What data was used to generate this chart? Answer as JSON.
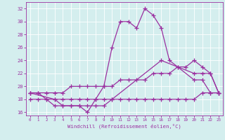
{
  "xlabel": "Windchill (Refroidissement éolien,°C)",
  "line1_x": [
    0,
    1,
    2,
    3,
    4,
    5,
    6,
    7,
    8,
    9,
    10,
    11,
    12,
    13,
    14,
    15,
    16,
    17,
    20,
    21,
    22,
    23
  ],
  "line1_y": [
    19,
    19,
    18,
    17,
    17,
    17,
    17,
    16,
    18,
    20,
    26,
    30,
    30,
    29,
    32,
    31,
    29,
    24,
    21,
    21,
    19,
    19
  ],
  "line2_x": [
    0,
    3,
    4,
    5,
    6,
    7,
    8,
    9,
    10,
    16,
    18,
    20,
    21,
    22,
    23
  ],
  "line2_y": [
    19,
    18,
    17,
    17,
    17,
    17,
    17,
    17,
    18,
    24,
    23,
    22,
    22,
    22,
    19
  ],
  "line3_x": [
    0,
    1,
    2,
    3,
    4,
    5,
    6,
    7,
    8,
    9,
    10,
    11,
    12,
    13,
    14,
    15,
    16,
    17,
    18,
    19,
    20,
    21,
    22,
    23
  ],
  "line3_y": [
    19,
    19,
    19,
    19,
    19,
    20,
    20,
    20,
    20,
    20,
    20,
    21,
    21,
    21,
    21,
    22,
    22,
    22,
    23,
    23,
    24,
    23,
    22,
    19
  ],
  "line4_x": [
    0,
    1,
    2,
    3,
    4,
    5,
    6,
    7,
    8,
    9,
    10,
    11,
    12,
    13,
    14,
    15,
    16,
    17,
    18,
    19,
    20,
    21,
    22,
    23
  ],
  "line4_y": [
    18,
    18,
    18,
    18,
    18,
    18,
    18,
    18,
    18,
    18,
    18,
    18,
    18,
    18,
    18,
    18,
    18,
    18,
    18,
    18,
    18,
    19,
    19,
    19
  ],
  "ylim": [
    15.5,
    33.0
  ],
  "xlim": [
    -0.5,
    23.5
  ],
  "yticks": [
    16,
    18,
    20,
    22,
    24,
    26,
    28,
    30,
    32
  ],
  "xticks": [
    0,
    1,
    2,
    3,
    4,
    5,
    6,
    7,
    8,
    9,
    10,
    11,
    12,
    13,
    14,
    15,
    16,
    17,
    18,
    19,
    20,
    21,
    22,
    23
  ],
  "line_color": "#9B30A0",
  "bg_color": "#d4eeee",
  "grid_color": "#ffffff",
  "markersize": 4
}
